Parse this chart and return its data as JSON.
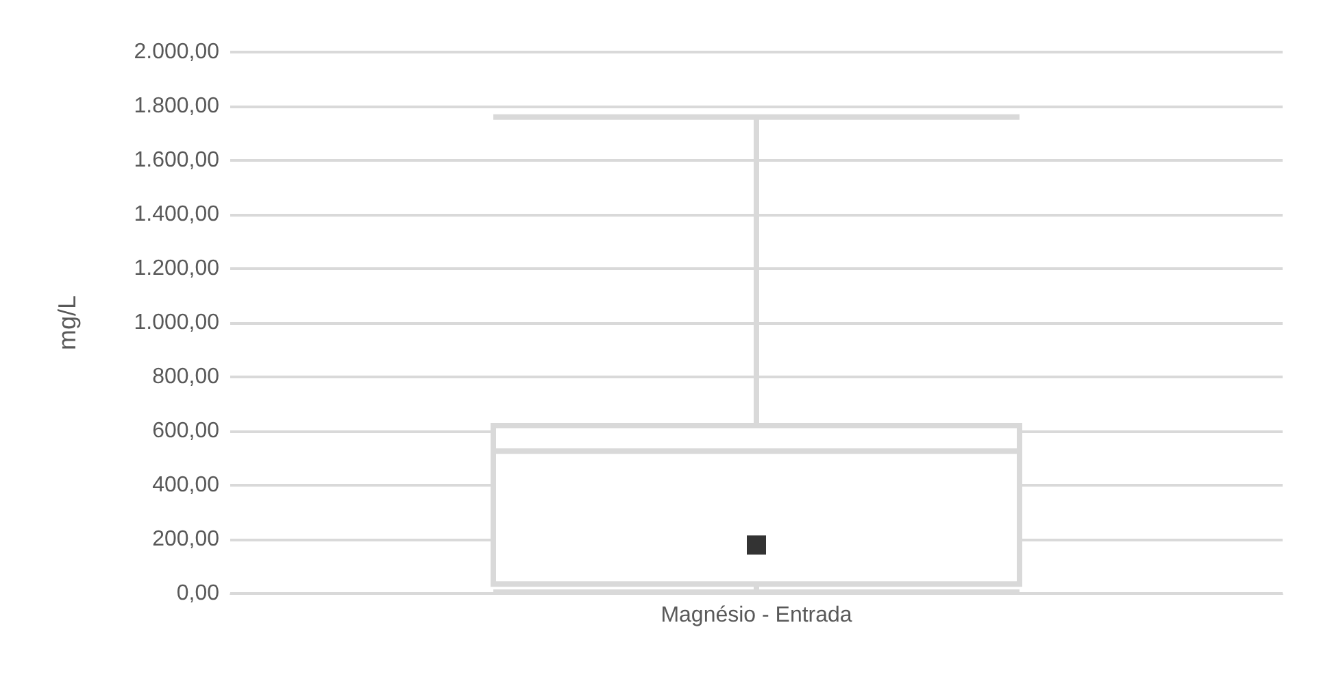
{
  "chart_data": {
    "type": "box",
    "ylabel": "mg/L",
    "categories": [
      "Magnésio - Entrada"
    ],
    "series": [
      {
        "color": "#d9d9d9",
        "boxes": [
          {
            "low": 5,
            "q1": 35,
            "median": 526,
            "q3": 620,
            "high": 1760,
            "mean": 179
          }
        ]
      }
    ],
    "ylim": [
      0,
      2000
    ],
    "yticks": [
      {
        "value": 0,
        "label": "0,00"
      },
      {
        "value": 200,
        "label": "200,00"
      },
      {
        "value": 400,
        "label": "400,00"
      },
      {
        "value": 600,
        "label": "600,00"
      },
      {
        "value": 800,
        "label": "800,00"
      },
      {
        "value": 1000,
        "label": "1.000,00"
      },
      {
        "value": 1200,
        "label": "1.200,00"
      },
      {
        "value": 1400,
        "label": "1.400,00"
      },
      {
        "value": 1600,
        "label": "1.600,00"
      },
      {
        "value": 1800,
        "label": "1.800,00"
      },
      {
        "value": 2000,
        "label": "2.000,00"
      }
    ],
    "grid": "y",
    "marker": "square"
  }
}
